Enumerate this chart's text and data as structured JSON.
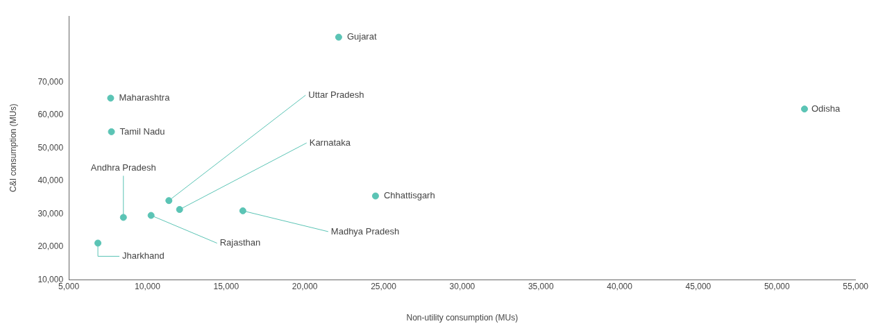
{
  "chart_data": {
    "type": "scatter",
    "xlabel": "Non-utility consumption (MUs)",
    "ylabel": "C&I consumption (MUs)",
    "x": [
      22150,
      7660,
      7710,
      51750,
      24490,
      11360,
      12040,
      16060,
      10230,
      8470,
      6850
    ],
    "series": [
      {
        "color": "#5bc4b5",
        "values": [
          83600,
          65100,
          54900,
          61800,
          35400,
          34000,
          31300,
          30900,
          29500,
          28900,
          21100
        ]
      }
    ],
    "annotations": [
      {
        "text": "Gujarat",
        "x": 22150,
        "y": 83600
      },
      {
        "text": "Maharashtra",
        "x": 7660,
        "y": 65100
      },
      {
        "text": "Tamil Nadu",
        "x": 7710,
        "y": 54900
      },
      {
        "text": "Odisha",
        "x": 51750,
        "y": 61800
      },
      {
        "text": "Chhattisgarh",
        "x": 24490,
        "y": 35400
      },
      {
        "text": "Uttar Pradesh",
        "x": 11360,
        "y": 34000
      },
      {
        "text": "Karnataka",
        "x": 12040,
        "y": 31300
      },
      {
        "text": "Madhya Pradesh",
        "x": 16060,
        "y": 30900
      },
      {
        "text": "Rajasthan",
        "x": 10230,
        "y": 29500
      },
      {
        "text": "Andhra Pradesh",
        "x": 8470,
        "y": 28900
      },
      {
        "text": "Jharkhand",
        "x": 6850,
        "y": 21100
      }
    ],
    "xlim": [
      5000,
      55000
    ],
    "xticks": [
      {
        "value": 5000,
        "label": "5,000"
      },
      {
        "value": 10000,
        "label": "10,000"
      },
      {
        "value": 15000,
        "label": "15,000"
      },
      {
        "value": 20000,
        "label": "20,000"
      },
      {
        "value": 25000,
        "label": "25,000"
      },
      {
        "value": 30000,
        "label": "30,000"
      },
      {
        "value": 35000,
        "label": "35,000"
      },
      {
        "value": 40000,
        "label": "40,000"
      },
      {
        "value": 45000,
        "label": "45,000"
      },
      {
        "value": 50000,
        "label": "50,000"
      },
      {
        "value": 55000,
        "label": "55,000"
      }
    ],
    "ylim": [
      10000,
      90000
    ],
    "yticks": [
      {
        "value": 10000,
        "label": "10,000"
      },
      {
        "value": 20000,
        "label": "20,000"
      },
      {
        "value": 30000,
        "label": "30,000"
      },
      {
        "value": 40000,
        "label": "40,000"
      },
      {
        "value": 50000,
        "label": "50,000"
      },
      {
        "value": 60000,
        "label": "60,000"
      },
      {
        "value": 70000,
        "label": "70,000"
      }
    ],
    "grid": false,
    "legend": false,
    "marker": "circle"
  }
}
